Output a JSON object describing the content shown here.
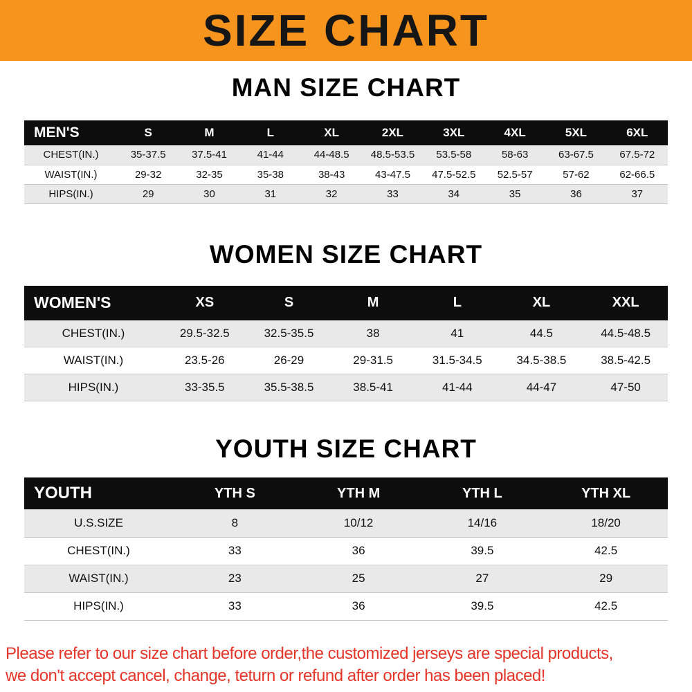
{
  "banner": {
    "title": "SIZE CHART"
  },
  "colors": {
    "banner_bg": "#F7941D",
    "table_header_bg": "#0d0d0d",
    "row_stripe": "#e9e9e9",
    "notice_text": "#e53529"
  },
  "chart_data": [
    {
      "type": "table",
      "title": "MAN SIZE CHART",
      "corner_label": "MEN'S",
      "columns": [
        "S",
        "M",
        "L",
        "XL",
        "2XL",
        "3XL",
        "4XL",
        "5XL",
        "6XL"
      ],
      "rows": [
        {
          "label": "CHEST(IN.)",
          "values": [
            "35-37.5",
            "37.5-41",
            "41-44",
            "44-48.5",
            "48.5-53.5",
            "53.5-58",
            "58-63",
            "63-67.5",
            "67.5-72"
          ]
        },
        {
          "label": "WAIST(IN.)",
          "values": [
            "29-32",
            "32-35",
            "35-38",
            "38-43",
            "43-47.5",
            "47.5-52.5",
            "52.5-57",
            "57-62",
            "62-66.5"
          ]
        },
        {
          "label": "HIPS(IN.)",
          "values": [
            "29",
            "30",
            "31",
            "32",
            "33",
            "34",
            "35",
            "36",
            "37"
          ]
        }
      ]
    },
    {
      "type": "table",
      "title": "WOMEN SIZE CHART",
      "corner_label": "WOMEN'S",
      "columns": [
        "XS",
        "S",
        "M",
        "L",
        "XL",
        "XXL"
      ],
      "rows": [
        {
          "label": "CHEST(IN.)",
          "values": [
            "29.5-32.5",
            "32.5-35.5",
            "38",
            "41",
            "44.5",
            "44.5-48.5"
          ]
        },
        {
          "label": "WAIST(IN.)",
          "values": [
            "23.5-26",
            "26-29",
            "29-31.5",
            "31.5-34.5",
            "34.5-38.5",
            "38.5-42.5"
          ]
        },
        {
          "label": "HIPS(IN.)",
          "values": [
            "33-35.5",
            "35.5-38.5",
            "38.5-41",
            "41-44",
            "44-47",
            "47-50"
          ]
        }
      ]
    },
    {
      "type": "table",
      "title": "YOUTH SIZE CHART",
      "corner_label": "YOUTH",
      "columns": [
        "YTH S",
        "YTH M",
        "YTH L",
        "YTH XL"
      ],
      "rows": [
        {
          "label": "U.S.SIZE",
          "values": [
            "8",
            "10/12",
            "14/16",
            "18/20"
          ]
        },
        {
          "label": "CHEST(IN.)",
          "values": [
            "33",
            "36",
            "39.5",
            "42.5"
          ]
        },
        {
          "label": "WAIST(IN.)",
          "values": [
            "23",
            "25",
            "27",
            "29"
          ]
        },
        {
          "label": "HIPS(IN.)",
          "values": [
            "33",
            "36",
            "39.5",
            "42.5"
          ]
        }
      ]
    }
  ],
  "footer": {
    "lines": [
      "Please refer to our size chart before order,the customized jerseys are special products,",
      "we don't accept cancel, change, teturn or refund after order has been placed!"
    ]
  }
}
